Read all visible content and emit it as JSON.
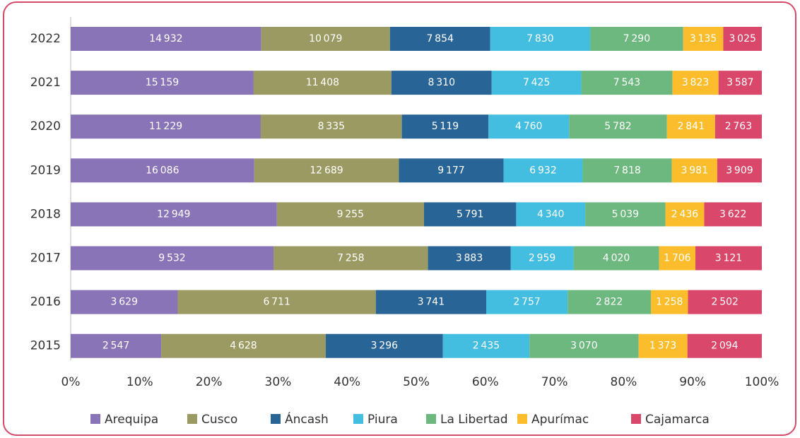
{
  "chart_data": {
    "type": "stacked-bar-100",
    "categories": [
      "2022",
      "2021",
      "2020",
      "2019",
      "2018",
      "2017",
      "2016",
      "2015"
    ],
    "series": [
      {
        "name": "Arequipa",
        "color": "#8a74b8",
        "values": [
          14932,
          15159,
          11229,
          16086,
          12949,
          9532,
          3629,
          2547
        ],
        "value_labels": [
          "14 932",
          "15 159",
          "11 229",
          "16 086",
          "12 949",
          "9 532",
          "3 629",
          "2 547"
        ]
      },
      {
        "name": "Cusco",
        "color": "#9b9a62",
        "values": [
          10079,
          11408,
          8335,
          12689,
          9255,
          7258,
          6711,
          4628
        ],
        "value_labels": [
          "10 079",
          "11 408",
          "8 335",
          "12 689",
          "9 255",
          "7 258",
          "6 711",
          "4 628"
        ]
      },
      {
        "name": "Áncash",
        "color": "#296496",
        "values": [
          7854,
          8310,
          5119,
          9177,
          5791,
          3883,
          3741,
          3296
        ],
        "value_labels": [
          "7 854",
          "8 310",
          "5 119",
          "9 177",
          "5 791",
          "3 883",
          "3 741",
          "3 296"
        ]
      },
      {
        "name": "Piura",
        "color": "#43bde0",
        "values": [
          7830,
          7425,
          4760,
          6932,
          4340,
          2959,
          2757,
          2435
        ],
        "value_labels": [
          "7 830",
          "7 425",
          "4 760",
          "6 932",
          "4 340",
          "2 959",
          "2 757",
          "2 435"
        ]
      },
      {
        "name": "La Libertad",
        "color": "#6db87e",
        "values": [
          7290,
          7543,
          5782,
          7818,
          5039,
          4020,
          2822,
          3070
        ],
        "value_labels": [
          "7 290",
          "7 543",
          "5 782",
          "7 818",
          "5 039",
          "4 020",
          "2 822",
          "3 070"
        ]
      },
      {
        "name": "Apurímac",
        "color": "#fbbd2b",
        "values": [
          3135,
          3823,
          2841,
          3981,
          2436,
          1706,
          1258,
          1373
        ],
        "value_labels": [
          "3 135",
          "3 823",
          "2 841",
          "3 981",
          "2 436",
          "1 706",
          "1 258",
          "1 373"
        ]
      },
      {
        "name": "Cajamarca",
        "color": "#d9476a",
        "values": [
          3025,
          3587,
          2763,
          3909,
          3622,
          3121,
          2502,
          2094
        ],
        "value_labels": [
          "3 025",
          "3 587",
          "2 763",
          "3 909",
          "3 622",
          "3 121",
          "2 502",
          "2 094"
        ]
      }
    ],
    "xlim": [
      0,
      100
    ],
    "xticks": [
      {
        "value": 0,
        "label": "0%"
      },
      {
        "value": 10,
        "label": "10%"
      },
      {
        "value": 20,
        "label": "20%"
      },
      {
        "value": 30,
        "label": "30%"
      },
      {
        "value": 40,
        "label": "40%"
      },
      {
        "value": 50,
        "label": "50%"
      },
      {
        "value": 60,
        "label": "60%"
      },
      {
        "value": 70,
        "label": "70%"
      },
      {
        "value": 80,
        "label": "80%"
      },
      {
        "value": 90,
        "label": "90%"
      },
      {
        "value": 100,
        "label": "100%"
      }
    ],
    "legend": "bottom"
  }
}
